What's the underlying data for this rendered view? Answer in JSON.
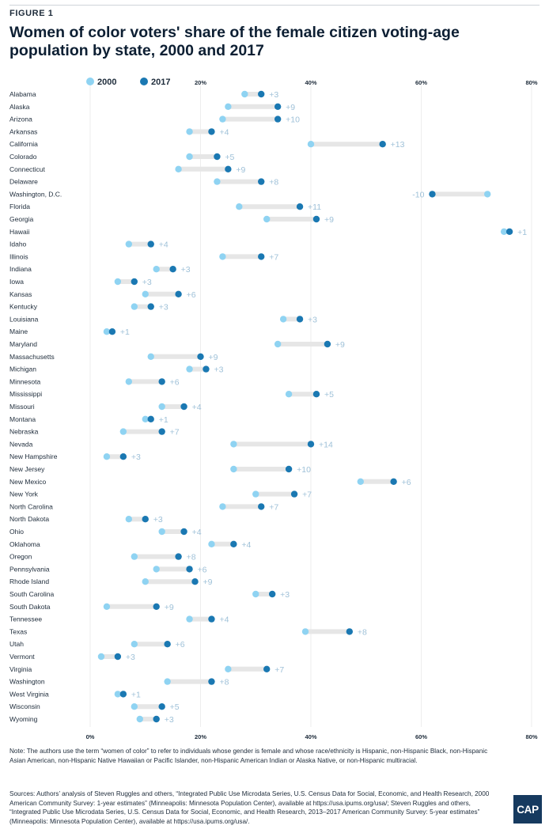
{
  "figure_label": "FIGURE 1",
  "title": "Women of color voters' share of the female citizen voting-age population by state, 2000 and 2017",
  "note": "Note: The authors use the term “women of color” to refer to individuals whose gender is female and whose race/ethnicity is Hispanic, non-Hispanic Black, non-Hispanic Asian American, non-Hispanic Native Hawaiian or Pacific Islander, non-Hispanic American Indian or Alaska Native, or non-Hispanic multiracial.",
  "sources": "Sources: Authors’ analysis of Steven Ruggles and others, “Integrated Public Use Microdata Series, U.S. Census Data for Social, Economic, and Health Research, 2000 American Community Survey: 1-year estimates” (Minneapolis: Minnesota Population Center), available at https://usa.ipums.org/usa/; Steven Ruggles and others, “Integrated Public Use Microdata Series, U.S. Census Data for Social, Economic, and Health Research, 2013–2017 American Community Survey: 5-year estimates” (Minneapolis: Minnesota Population Center), available at https://usa.ipums.org/usa/.",
  "logo_text": "CAP",
  "colors": {
    "y2000": "#8fd3f2",
    "y2017": "#1a78b2",
    "connector": "#e6e6e6",
    "diff_label": "#9fc1d8",
    "logo_bg": "#163a5f"
  },
  "chart_data": {
    "type": "dumbbell",
    "series": [
      {
        "name": "2000",
        "color": "#8fd3f2"
      },
      {
        "name": "2017",
        "color": "#1a78b2"
      }
    ],
    "xlim": [
      0,
      80
    ],
    "x_ticks": [
      "0%",
      "20%",
      "40%",
      "60%",
      "80%"
    ],
    "x_tick_values": [
      0,
      20,
      40,
      60,
      80
    ],
    "legend": "top-left",
    "grid": true,
    "rows": [
      {
        "state": "Alabama",
        "y2000": 28,
        "y2017": 31,
        "diff": "+3"
      },
      {
        "state": "Alaska",
        "y2000": 25,
        "y2017": 34,
        "diff": "+9"
      },
      {
        "state": "Arizona",
        "y2000": 24,
        "y2017": 34,
        "diff": "+10"
      },
      {
        "state": "Arkansas",
        "y2000": 18,
        "y2017": 22,
        "diff": "+4"
      },
      {
        "state": "California",
        "y2000": 40,
        "y2017": 53,
        "diff": "+13"
      },
      {
        "state": "Colorado",
        "y2000": 18,
        "y2017": 23,
        "diff": "+5"
      },
      {
        "state": "Connecticut",
        "y2000": 16,
        "y2017": 25,
        "diff": "+9"
      },
      {
        "state": "Delaware",
        "y2000": 23,
        "y2017": 31,
        "diff": "+8"
      },
      {
        "state": "Washington, D.C.",
        "y2000": 72,
        "y2017": 62,
        "diff": "-10"
      },
      {
        "state": "Florida",
        "y2000": 27,
        "y2017": 38,
        "diff": "+11"
      },
      {
        "state": "Georgia",
        "y2000": 32,
        "y2017": 41,
        "diff": "+9"
      },
      {
        "state": "Hawaii",
        "y2000": 75,
        "y2017": 76,
        "diff": "+1"
      },
      {
        "state": "Idaho",
        "y2000": 7,
        "y2017": 11,
        "diff": "+4"
      },
      {
        "state": "Illinois",
        "y2000": 24,
        "y2017": 31,
        "diff": "+7"
      },
      {
        "state": "Indiana",
        "y2000": 12,
        "y2017": 15,
        "diff": "+3"
      },
      {
        "state": "Iowa",
        "y2000": 5,
        "y2017": 8,
        "diff": "+3"
      },
      {
        "state": "Kansas",
        "y2000": 10,
        "y2017": 16,
        "diff": "+6"
      },
      {
        "state": "Kentucky",
        "y2000": 8,
        "y2017": 11,
        "diff": "+3"
      },
      {
        "state": "Louisiana",
        "y2000": 35,
        "y2017": 38,
        "diff": "+3"
      },
      {
        "state": "Maine",
        "y2000": 3,
        "y2017": 4,
        "diff": "+1"
      },
      {
        "state": "Maryland",
        "y2000": 34,
        "y2017": 43,
        "diff": "+9"
      },
      {
        "state": "Massachusetts",
        "y2000": 11,
        "y2017": 20,
        "diff": "+9"
      },
      {
        "state": "Michigan",
        "y2000": 18,
        "y2017": 21,
        "diff": "+3"
      },
      {
        "state": "Minnesota",
        "y2000": 7,
        "y2017": 13,
        "diff": "+6"
      },
      {
        "state": "Mississippi",
        "y2000": 36,
        "y2017": 41,
        "diff": "+5"
      },
      {
        "state": "Missouri",
        "y2000": 13,
        "y2017": 17,
        "diff": "+4"
      },
      {
        "state": "Montana",
        "y2000": 10,
        "y2017": 11,
        "diff": "+1"
      },
      {
        "state": "Nebraska",
        "y2000": 6,
        "y2017": 13,
        "diff": "+7"
      },
      {
        "state": "Nevada",
        "y2000": 26,
        "y2017": 40,
        "diff": "+14"
      },
      {
        "state": "New Hampshire",
        "y2000": 3,
        "y2017": 6,
        "diff": "+3"
      },
      {
        "state": "New Jersey",
        "y2000": 26,
        "y2017": 36,
        "diff": "+10"
      },
      {
        "state": "New Mexico",
        "y2000": 49,
        "y2017": 55,
        "diff": "+6"
      },
      {
        "state": "New York",
        "y2000": 30,
        "y2017": 37,
        "diff": "+7"
      },
      {
        "state": "North Carolina",
        "y2000": 24,
        "y2017": 31,
        "diff": "+7"
      },
      {
        "state": "North Dakota",
        "y2000": 7,
        "y2017": 10,
        "diff": "+3"
      },
      {
        "state": "Ohio",
        "y2000": 13,
        "y2017": 17,
        "diff": "+4"
      },
      {
        "state": "Oklahoma",
        "y2000": 22,
        "y2017": 26,
        "diff": "+4"
      },
      {
        "state": "Oregon",
        "y2000": 8,
        "y2017": 16,
        "diff": "+8"
      },
      {
        "state": "Pennsylvania",
        "y2000": 12,
        "y2017": 18,
        "diff": "+6"
      },
      {
        "state": "Rhode Island",
        "y2000": 10,
        "y2017": 19,
        "diff": "+9"
      },
      {
        "state": "South Carolina",
        "y2000": 30,
        "y2017": 33,
        "diff": "+3"
      },
      {
        "state": "South Dakota",
        "y2000": 3,
        "y2017": 12,
        "diff": "+9"
      },
      {
        "state": "Tennessee",
        "y2000": 18,
        "y2017": 22,
        "diff": "+4"
      },
      {
        "state": "Texas",
        "y2000": 39,
        "y2017": 47,
        "diff": "+8"
      },
      {
        "state": "Utah",
        "y2000": 8,
        "y2017": 14,
        "diff": "+6"
      },
      {
        "state": "Vermont",
        "y2000": 2,
        "y2017": 5,
        "diff": "+3"
      },
      {
        "state": "Virginia",
        "y2000": 25,
        "y2017": 32,
        "diff": "+7"
      },
      {
        "state": "Washington",
        "y2000": 14,
        "y2017": 22,
        "diff": "+8"
      },
      {
        "state": "West Virginia",
        "y2000": 5,
        "y2017": 6,
        "diff": "+1"
      },
      {
        "state": "Wisconsin",
        "y2000": 8,
        "y2017": 13,
        "diff": "+5"
      },
      {
        "state": "Wyoming",
        "y2000": 9,
        "y2017": 12,
        "diff": "+3"
      }
    ]
  }
}
